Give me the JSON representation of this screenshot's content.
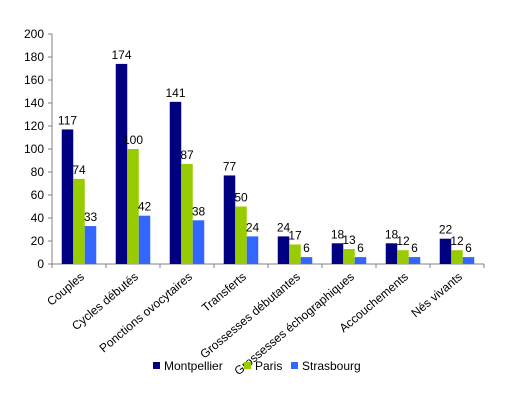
{
  "chart_data": {
    "type": "bar",
    "title": "",
    "xlabel": "",
    "ylabel": "",
    "ylim": [
      0,
      200
    ],
    "yticks": [
      0,
      20,
      40,
      60,
      80,
      100,
      120,
      140,
      160,
      180,
      200
    ],
    "grid": false,
    "legend_position": "bottom",
    "categories": [
      "Couples",
      "Cycles débutés",
      "Ponctions ovocytaires",
      "Transferts",
      "Grossesses débutantes",
      "Grossesses échographiques",
      "Accouchements",
      "Nés vivants"
    ],
    "series": [
      {
        "name": "Montpellier",
        "color": "#000080",
        "values": [
          117,
          174,
          141,
          77,
          24,
          18,
          18,
          22
        ]
      },
      {
        "name": "Paris",
        "color": "#99CC00",
        "values": [
          74,
          100,
          87,
          50,
          17,
          13,
          12,
          12
        ]
      },
      {
        "name": "Strasbourg",
        "color": "#3366FF",
        "values": [
          33,
          42,
          38,
          24,
          6,
          6,
          6,
          6
        ]
      }
    ]
  }
}
